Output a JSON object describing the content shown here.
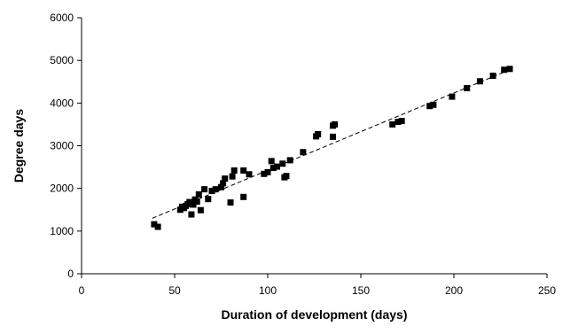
{
  "chart_data": {
    "type": "scatter",
    "title": "",
    "xlabel": "Duration of development (days)",
    "ylabel": "Degree days",
    "xlim": [
      0,
      250
    ],
    "ylim": [
      0,
      6000
    ],
    "xticks": [
      0,
      50,
      100,
      150,
      200,
      250
    ],
    "yticks": [
      0,
      1000,
      2000,
      3000,
      4000,
      5000,
      6000
    ],
    "grid": false,
    "legend": "none",
    "marker": "square",
    "marker_color": "#000000",
    "points": [
      [
        39,
        1160
      ],
      [
        41,
        1100
      ],
      [
        53,
        1500
      ],
      [
        54,
        1570
      ],
      [
        55,
        1540
      ],
      [
        56,
        1590
      ],
      [
        57,
        1630
      ],
      [
        58,
        1680
      ],
      [
        59,
        1390
      ],
      [
        60,
        1620
      ],
      [
        61,
        1740
      ],
      [
        62,
        1690
      ],
      [
        63,
        1860
      ],
      [
        64,
        1490
      ],
      [
        66,
        1980
      ],
      [
        68,
        1750
      ],
      [
        70,
        1940
      ],
      [
        72,
        1980
      ],
      [
        75,
        2030
      ],
      [
        76,
        2120
      ],
      [
        77,
        2230
      ],
      [
        80,
        1670
      ],
      [
        81,
        2280
      ],
      [
        82,
        2420
      ],
      [
        87,
        1800
      ],
      [
        87,
        2420
      ],
      [
        90,
        2330
      ],
      [
        98,
        2340
      ],
      [
        100,
        2380
      ],
      [
        102,
        2640
      ],
      [
        103,
        2480
      ],
      [
        105,
        2510
      ],
      [
        108,
        2580
      ],
      [
        109,
        2260
      ],
      [
        110,
        2290
      ],
      [
        112,
        2660
      ],
      [
        119,
        2850
      ],
      [
        126,
        3220
      ],
      [
        127,
        3270
      ],
      [
        135,
        3210
      ],
      [
        135,
        3470
      ],
      [
        136,
        3500
      ],
      [
        167,
        3500
      ],
      [
        170,
        3560
      ],
      [
        172,
        3580
      ],
      [
        187,
        3930
      ],
      [
        189,
        3960
      ],
      [
        199,
        4150
      ],
      [
        207,
        4350
      ],
      [
        214,
        4510
      ],
      [
        221,
        4640
      ],
      [
        227,
        4780
      ],
      [
        230,
        4800
      ]
    ],
    "trendline": {
      "style": "dashed",
      "from": [
        38,
        1300
      ],
      "to": [
        230,
        4780
      ]
    }
  }
}
